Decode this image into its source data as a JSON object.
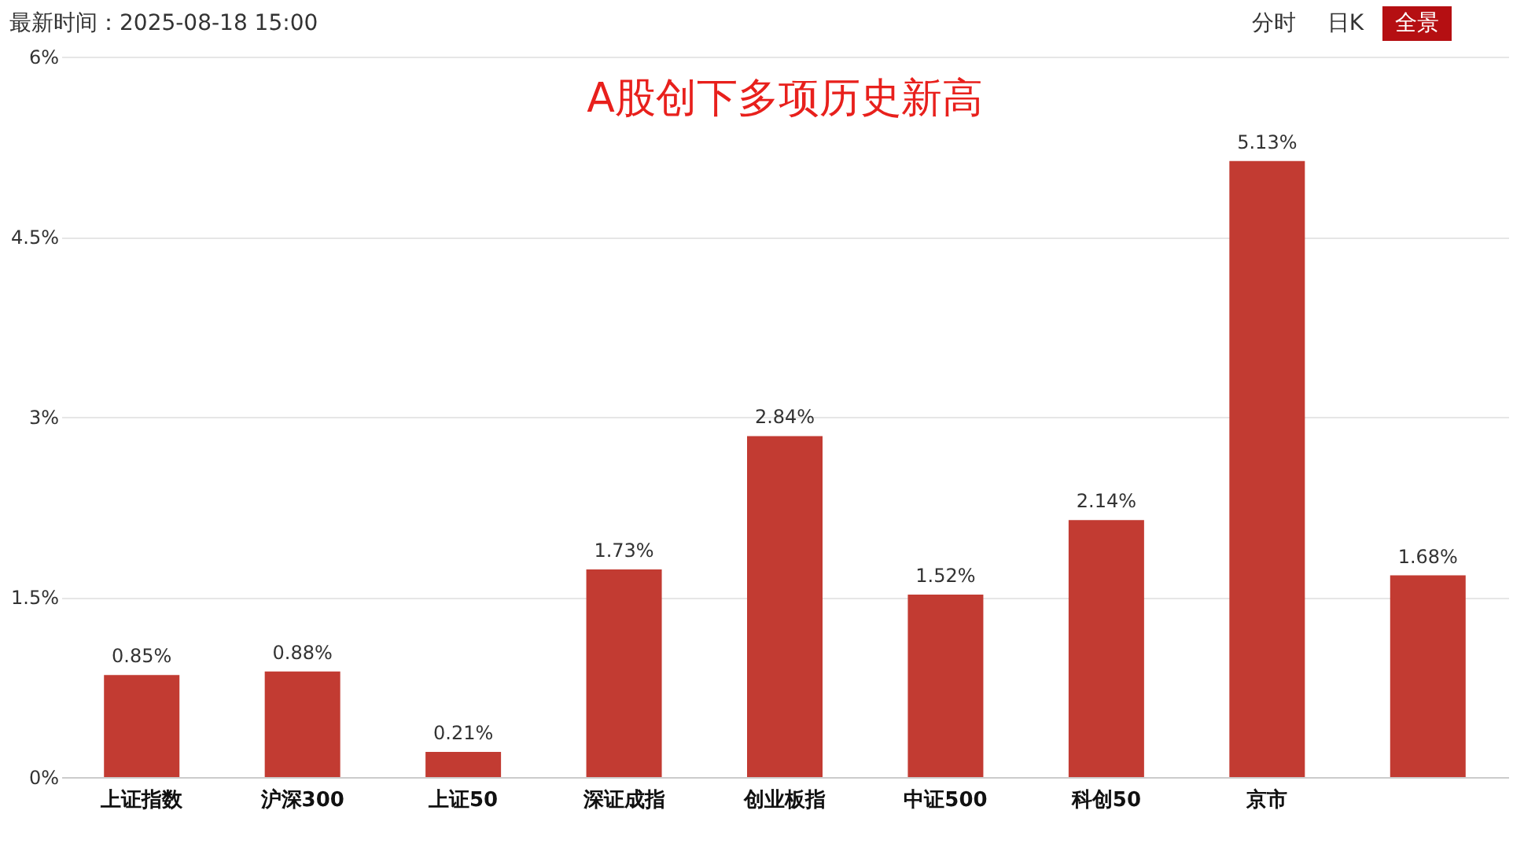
{
  "chart_data": {
    "type": "bar",
    "title": "A股创下多项历史新高",
    "categories": [
      "上证指数",
      "沪深300",
      "上证50",
      "深证成指",
      "创业板指",
      "中证500",
      "科创50",
      "京市",
      null
    ],
    "values": [
      0.85,
      0.88,
      0.21,
      1.73,
      2.84,
      1.52,
      2.14,
      5.13,
      1.68
    ],
    "color": "#c23b32",
    "ylim": [
      0,
      6
    ],
    "yticks": [
      {
        "value": 0,
        "label": "0%"
      },
      {
        "value": 1.5,
        "label": "1.5%"
      },
      {
        "value": 3,
        "label": "3%"
      },
      {
        "value": 4.5,
        "label": "4.5%"
      },
      {
        "value": 6,
        "label": "6%"
      }
    ],
    "grid": "y",
    "data_labels": true,
    "value_labels": [
      "0.85%",
      "0.88%",
      "0.21%",
      "1.73%",
      "2.84%",
      "1.52%",
      "2.14%",
      "5.13%",
      "1.68%"
    ],
    "annotations": [
      "最新时间：2025-08-18 15:00",
      "分时",
      "日K",
      "全景"
    ]
  }
}
